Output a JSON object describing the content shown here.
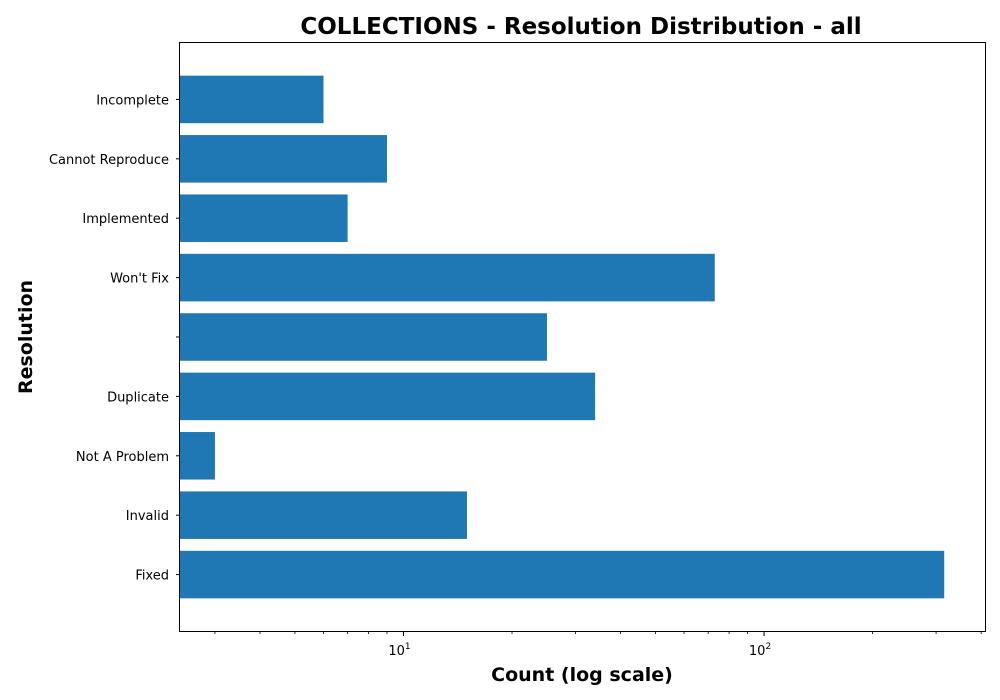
{
  "chart_data": {
    "type": "bar",
    "orientation": "horizontal",
    "title": "COLLECTIONS - Resolution Distribution - all",
    "xlabel": "Count (log scale)",
    "ylabel": "Resolution",
    "x_scale": "log",
    "xlim": [
      2.4,
      410
    ],
    "categories": [
      "Fixed",
      "Invalid",
      "Not A Problem",
      "Duplicate",
      "",
      "Won't Fix",
      "Implemented",
      "Cannot Reproduce",
      "Incomplete"
    ],
    "values": [
      316,
      15,
      3,
      34,
      25,
      73,
      7,
      9,
      6
    ],
    "x_major_ticks": [
      {
        "value": 10,
        "base": "10",
        "exp": "1"
      },
      {
        "value": 100,
        "base": "10",
        "exp": "2"
      }
    ],
    "bar_color": "#1f77b4",
    "grid": false
  }
}
